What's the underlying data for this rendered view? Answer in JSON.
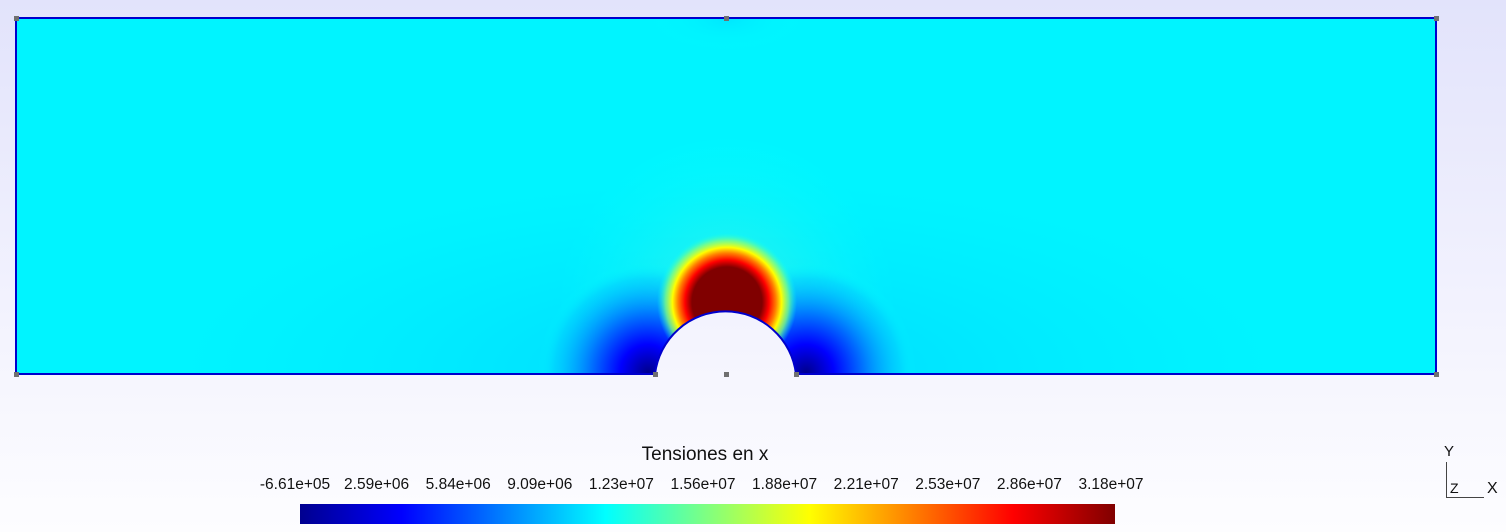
{
  "plot": {
    "title": "Tensiones en x",
    "colormap": "jet",
    "background_color": "#e6e7fb",
    "outline_color": "#0000cc",
    "node_marker_color": "#707070",
    "field_description": "x-direction stress contour on a rectangular plate with a semicircular notch at bottom center; tensile concentration (red) above the notch tip, compressive/low values (dark blue) on both sides of the notch near the bottom edge, cyan elsewhere"
  },
  "colorbar": {
    "tick_labels": [
      "-6.61e+05",
      "2.59e+06",
      "5.84e+06",
      "9.09e+06",
      "1.23e+07",
      "1.56e+07",
      "1.88e+07",
      "2.21e+07",
      "2.53e+07",
      "2.86e+07",
      "3.18e+07"
    ],
    "min": -661000,
    "max": 31800000,
    "colors": [
      "#00008f",
      "#0000ff",
      "#0080ff",
      "#00ffff",
      "#80ff80",
      "#ffff00",
      "#ff8000",
      "#ff0000",
      "#800000"
    ]
  },
  "axes_widget": {
    "y_label": "Y",
    "z_label": "Z",
    "x_label": "X"
  }
}
